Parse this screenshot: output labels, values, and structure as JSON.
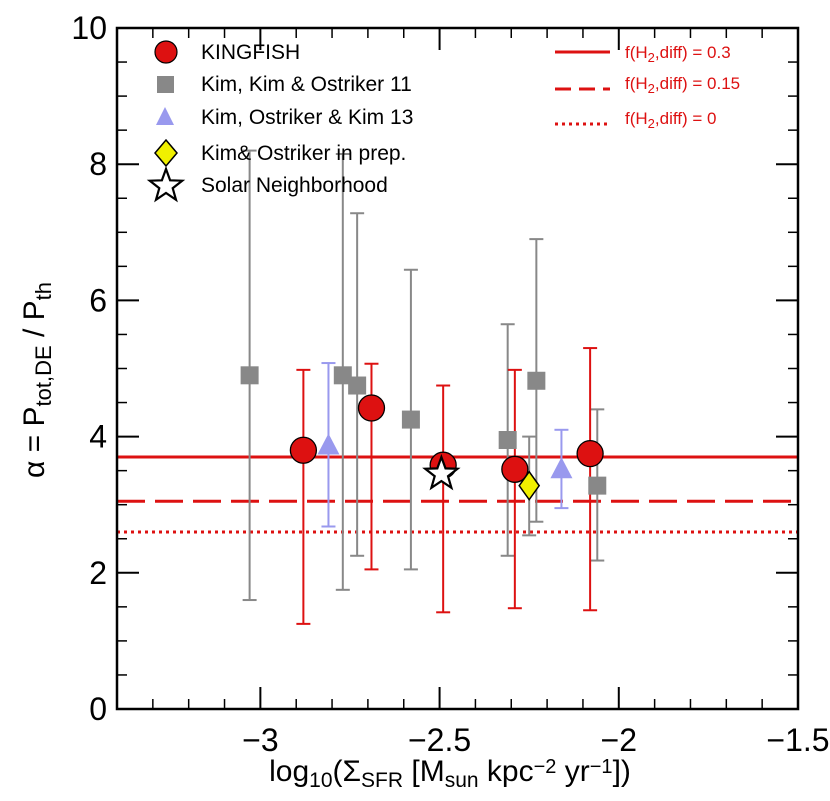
{
  "chart_data": {
    "type": "scatter",
    "xlabel": {
      "prefix": "log",
      "sub1": "10",
      "mid1": "(Σ",
      "sub2": "SFR",
      "mid2": " [M",
      "sub3": "sun",
      "mid3": " kpc",
      "sup1": "−2",
      "mid4": " yr",
      "sup2": "−1",
      "end": "])"
    },
    "ylabel": {
      "prefix": "α = P",
      "sub1": "tot,DE",
      "mid": " / P",
      "sub2": "th"
    },
    "xlim": [
      -3.4,
      -1.5
    ],
    "ylim": [
      0,
      10
    ],
    "xticks": [
      -3,
      -2.5,
      -2,
      -1.5
    ],
    "xtick_labels": [
      "−3",
      "−2.5",
      "−2",
      "−1.5"
    ],
    "yticks": [
      0,
      2,
      4,
      6,
      8,
      10
    ],
    "ytick_labels": [
      "0",
      "2",
      "4",
      "6",
      "8",
      "10"
    ],
    "series": [
      {
        "name": "Kim, Kim & Ostriker 11",
        "marker": "square",
        "color": "#888888",
        "points": [
          {
            "x": -3.03,
            "y": 4.9,
            "lo": 1.6,
            "hi": 8.2
          },
          {
            "x": -2.77,
            "y": 4.9,
            "lo": 1.75,
            "hi": 8.15
          },
          {
            "x": -2.73,
            "y": 4.75,
            "lo": 2.25,
            "hi": 7.28
          },
          {
            "x": -2.58,
            "y": 4.25,
            "lo": 2.05,
            "hi": 6.45
          },
          {
            "x": -2.31,
            "y": 3.95,
            "lo": 2.25,
            "hi": 5.65
          },
          {
            "x": -2.23,
            "y": 4.82,
            "lo": 2.75,
            "hi": 6.9
          },
          {
            "x": -2.06,
            "y": 3.28,
            "lo": 2.18,
            "hi": 4.4
          }
        ]
      },
      {
        "name": "Kim, Ostriker & Kim 13",
        "marker": "triangle",
        "color": "#9999ee",
        "points": [
          {
            "x": -2.81,
            "y": 3.87,
            "lo": 2.68,
            "hi": 5.08
          },
          {
            "x": -2.16,
            "y": 3.52,
            "lo": 2.95,
            "hi": 4.1
          }
        ]
      },
      {
        "name": "KINGFISH",
        "marker": "circle",
        "color": "#dd1111",
        "points": [
          {
            "x": -2.88,
            "y": 3.8,
            "lo": 1.25,
            "hi": 4.98
          },
          {
            "x": -2.69,
            "y": 4.42,
            "lo": 2.05,
            "hi": 5.07
          },
          {
            "x": -2.49,
            "y": 3.58,
            "lo": 1.42,
            "hi": 4.75
          },
          {
            "x": -2.29,
            "y": 3.52,
            "lo": 1.48,
            "hi": 4.98
          },
          {
            "x": -2.08,
            "y": 3.75,
            "lo": 1.45,
            "hi": 5.3
          }
        ]
      },
      {
        "name": "Kim& Ostriker in prep.",
        "marker": "diamond",
        "color": "#f0f000",
        "points": [
          {
            "x": -2.25,
            "y": 3.28,
            "lo": 2.55,
            "hi": 4.0
          }
        ]
      },
      {
        "name": "Solar Neighborhood",
        "marker": "star",
        "color": "#ffffff",
        "points": [
          {
            "x": -2.495,
            "y": 3.45
          }
        ]
      }
    ],
    "hlines": [
      {
        "y": 3.7,
        "style": "solid",
        "label_pre": "f(H",
        "label_sub": "2",
        "label_post": ",diff) = 0.3"
      },
      {
        "y": 3.05,
        "style": "dashed",
        "label_pre": "f(H",
        "label_sub": "2",
        "label_post": ",diff) = 0.15"
      },
      {
        "y": 2.6,
        "style": "dotted",
        "label_pre": "f(H",
        "label_sub": "2",
        "label_post": ",diff) = 0"
      }
    ],
    "legend_position": "top-left",
    "line_legend_position": "top-right",
    "line_color": "#dd1111"
  }
}
